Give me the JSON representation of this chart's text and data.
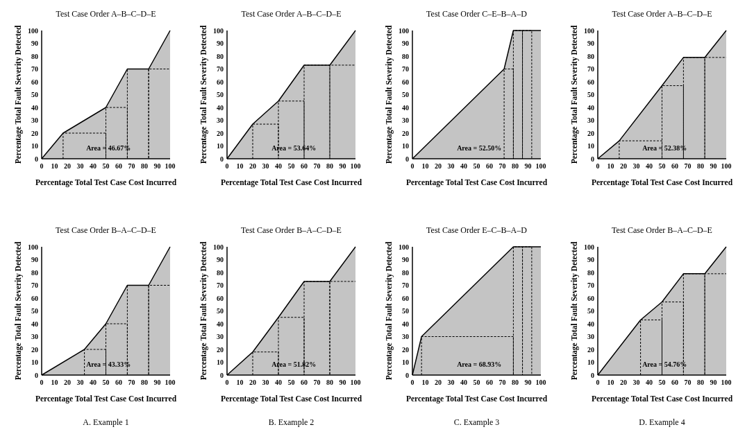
{
  "chart_data": [
    {
      "type": "area",
      "title": "Test Case Order A–B–C–D–E",
      "xlabel": "Percentage Total Test Case Cost Incurred",
      "ylabel": "Percentage Total Fault Severity Detected",
      "series": [
        {
          "type": "area",
          "x": [
            0,
            16.7,
            50,
            66.7,
            83.3,
            100
          ],
          "values": [
            0,
            20,
            40,
            70,
            70,
            100
          ],
          "color": "#c4c4c4"
        },
        {
          "type": "line",
          "x": [
            16.7,
            16.7,
            50,
            50,
            50,
            66.7,
            66.7,
            66.7,
            83.3,
            83.3,
            83.3,
            100
          ],
          "values": [
            0,
            20,
            20,
            0,
            40,
            40,
            0,
            70,
            70,
            0,
            70,
            70
          ],
          "color": "#000000",
          "line_style": "dashed"
        }
      ],
      "xlim": [
        0,
        100
      ],
      "ylim": [
        0,
        100
      ],
      "xticks": [
        0,
        10,
        20,
        30,
        40,
        50,
        60,
        70,
        80,
        90,
        100
      ],
      "yticks": [
        0,
        10,
        20,
        30,
        40,
        50,
        60,
        70,
        80,
        90,
        100
      ],
      "annotations": [
        "Area = 46.67%"
      ]
    },
    {
      "type": "area",
      "title": "Test Case Order A–B–C–D–E",
      "xlabel": "Percentage Total Test Case Cost Incurred",
      "ylabel": "Percentage Total Fault Severity Detected",
      "series": [
        {
          "type": "area",
          "x": [
            0,
            20,
            40,
            60,
            80,
            100
          ],
          "values": [
            0,
            27,
            45,
            73,
            73,
            100
          ],
          "color": "#c4c4c4"
        },
        {
          "type": "line",
          "x": [
            20,
            20,
            40,
            40,
            40,
            60,
            60,
            60,
            80,
            80,
            80,
            100
          ],
          "values": [
            0,
            27,
            27,
            0,
            45,
            45,
            0,
            73,
            73,
            0,
            73,
            73
          ],
          "color": "#000000",
          "line_style": "dashed"
        }
      ],
      "xlim": [
        0,
        100
      ],
      "ylim": [
        0,
        100
      ],
      "xticks": [
        0,
        10,
        20,
        30,
        40,
        50,
        60,
        70,
        80,
        90,
        100
      ],
      "yticks": [
        0,
        10,
        20,
        30,
        40,
        50,
        60,
        70,
        80,
        90,
        100
      ],
      "annotations": [
        "Area = 53.64%"
      ]
    },
    {
      "type": "area",
      "title": "Test Case Order C–E–B–A–D",
      "xlabel": "Percentage Total Test Case Cost Incurred",
      "ylabel": "Percentage Total Fault Severity Detected",
      "series": [
        {
          "type": "area",
          "x": [
            0,
            71.4,
            78.6,
            85.7,
            92.9,
            100
          ],
          "values": [
            0,
            70,
            100,
            100,
            100,
            100
          ],
          "color": "#c4c4c4"
        },
        {
          "type": "line",
          "x": [
            71.4,
            71.4,
            78.6,
            78.6,
            78.6,
            85.7,
            85.7,
            85.7,
            92.9,
            92.9
          ],
          "values": [
            0,
            70,
            70,
            0,
            100,
            100,
            0,
            100,
            100,
            0
          ],
          "color": "#000000",
          "line_style": "dashed"
        }
      ],
      "xlim": [
        0,
        100
      ],
      "ylim": [
        0,
        100
      ],
      "xticks": [
        0,
        10,
        20,
        30,
        40,
        50,
        60,
        70,
        80,
        90,
        100
      ],
      "yticks": [
        0,
        10,
        20,
        30,
        40,
        50,
        60,
        70,
        80,
        90,
        100
      ],
      "annotations": [
        "Area = 52.50%"
      ]
    },
    {
      "type": "area",
      "title": "Test Case Order A–B–C–D–E",
      "xlabel": "Percentage Total Test Case Cost Incurred",
      "ylabel": "Percentage Total Fault Severity Detected",
      "series": [
        {
          "type": "area",
          "x": [
            0,
            16.7,
            50,
            66.7,
            83.3,
            100
          ],
          "values": [
            0,
            14,
            57,
            79,
            79,
            100
          ],
          "color": "#c4c4c4"
        },
        {
          "type": "line",
          "x": [
            16.7,
            16.7,
            50,
            50,
            50,
            66.7,
            66.7,
            66.7,
            83.3,
            83.3,
            83.3,
            100
          ],
          "values": [
            0,
            14,
            14,
            0,
            57,
            57,
            0,
            79,
            79,
            0,
            79,
            79
          ],
          "color": "#000000",
          "line_style": "dashed"
        }
      ],
      "xlim": [
        0,
        100
      ],
      "ylim": [
        0,
        100
      ],
      "xticks": [
        0,
        10,
        20,
        30,
        40,
        50,
        60,
        70,
        80,
        90,
        100
      ],
      "yticks": [
        0,
        10,
        20,
        30,
        40,
        50,
        60,
        70,
        80,
        90,
        100
      ],
      "annotations": [
        "Area = 52.38%"
      ]
    },
    {
      "type": "area",
      "title": "Test Case Order B–A–C–D–E",
      "xlabel": "Percentage Total Test Case Cost Incurred",
      "ylabel": "Percentage Total Fault Severity Detected",
      "series": [
        {
          "type": "area",
          "x": [
            0,
            33.3,
            50,
            66.7,
            83.3,
            100
          ],
          "values": [
            0,
            20,
            40,
            70,
            70,
            100
          ],
          "color": "#c4c4c4"
        },
        {
          "type": "line",
          "x": [
            33.3,
            33.3,
            50,
            50,
            50,
            66.7,
            66.7,
            66.7,
            83.3,
            83.3,
            83.3,
            100
          ],
          "values": [
            0,
            20,
            20,
            0,
            40,
            40,
            0,
            70,
            70,
            0,
            70,
            70
          ],
          "color": "#000000",
          "line_style": "dashed"
        }
      ],
      "xlim": [
        0,
        100
      ],
      "ylim": [
        0,
        100
      ],
      "xticks": [
        0,
        10,
        20,
        30,
        40,
        50,
        60,
        70,
        80,
        90,
        100
      ],
      "yticks": [
        0,
        10,
        20,
        30,
        40,
        50,
        60,
        70,
        80,
        90,
        100
      ],
      "annotations": [
        "Area = 43.33%",
        "A.  Example 1"
      ]
    },
    {
      "type": "area",
      "title": "Test Case Order B–A–C–D–E",
      "xlabel": "Percentage Total Test Case Cost Incurred",
      "ylabel": "Percentage Total Fault Severity Detected",
      "series": [
        {
          "type": "area",
          "x": [
            0,
            20,
            40,
            60,
            80,
            100
          ],
          "values": [
            0,
            18,
            45,
            73,
            73,
            100
          ],
          "color": "#c4c4c4"
        },
        {
          "type": "line",
          "x": [
            20,
            20,
            40,
            40,
            40,
            60,
            60,
            60,
            80,
            80,
            80,
            100
          ],
          "values": [
            0,
            18,
            18,
            0,
            45,
            45,
            0,
            73,
            73,
            0,
            73,
            73
          ],
          "color": "#000000",
          "line_style": "dashed"
        }
      ],
      "xlim": [
        0,
        100
      ],
      "ylim": [
        0,
        100
      ],
      "xticks": [
        0,
        10,
        20,
        30,
        40,
        50,
        60,
        70,
        80,
        90,
        100
      ],
      "yticks": [
        0,
        10,
        20,
        30,
        40,
        50,
        60,
        70,
        80,
        90,
        100
      ],
      "annotations": [
        "Area = 51.82%",
        "B.  Example 2"
      ]
    },
    {
      "type": "area",
      "title": "Test Case Order E–C–B–A–D",
      "xlabel": "Percentage Total Test Case Cost Incurred",
      "ylabel": "Percentage Total Fault Severity Detected",
      "series": [
        {
          "type": "area",
          "x": [
            0,
            7.1,
            78.6,
            85.7,
            92.9,
            100
          ],
          "values": [
            0,
            30,
            100,
            100,
            100,
            100
          ],
          "color": "#c4c4c4"
        },
        {
          "type": "line",
          "x": [
            7.1,
            7.1,
            78.6,
            78.6,
            78.6,
            85.7,
            85.7,
            85.7,
            92.9,
            92.9
          ],
          "values": [
            0,
            30,
            30,
            0,
            100,
            100,
            0,
            100,
            100,
            0
          ],
          "color": "#000000",
          "line_style": "dashed"
        }
      ],
      "xlim": [
        0,
        100
      ],
      "ylim": [
        0,
        100
      ],
      "xticks": [
        0,
        10,
        20,
        30,
        40,
        50,
        60,
        70,
        80,
        90,
        100
      ],
      "yticks": [
        0,
        10,
        20,
        30,
        40,
        50,
        60,
        70,
        80,
        90,
        100
      ],
      "annotations": [
        "Area = 68.93%",
        "C. Example 3"
      ]
    },
    {
      "type": "area",
      "title": "Test Case Order B–A–C–D–E",
      "xlabel": "Percentage Total Test Case Cost Incurred",
      "ylabel": "Percentage Total Fault Severity Detected",
      "series": [
        {
          "type": "area",
          "x": [
            0,
            33.3,
            50,
            66.7,
            83.3,
            100
          ],
          "values": [
            0,
            43,
            57,
            79,
            79,
            100
          ],
          "color": "#c4c4c4"
        },
        {
          "type": "line",
          "x": [
            33.3,
            33.3,
            50,
            50,
            50,
            66.7,
            66.7,
            66.7,
            83.3,
            83.3,
            83.3,
            100
          ],
          "values": [
            0,
            43,
            43,
            0,
            57,
            57,
            0,
            79,
            79,
            0,
            79,
            79
          ],
          "color": "#000000",
          "line_style": "dashed"
        }
      ],
      "xlim": [
        0,
        100
      ],
      "ylim": [
        0,
        100
      ],
      "xticks": [
        0,
        10,
        20,
        30,
        40,
        50,
        60,
        70,
        80,
        90,
        100
      ],
      "yticks": [
        0,
        10,
        20,
        30,
        40,
        50,
        60,
        70,
        80,
        90,
        100
      ],
      "annotations": [
        "Area = 54.76%",
        "D.  Example 4"
      ]
    }
  ]
}
